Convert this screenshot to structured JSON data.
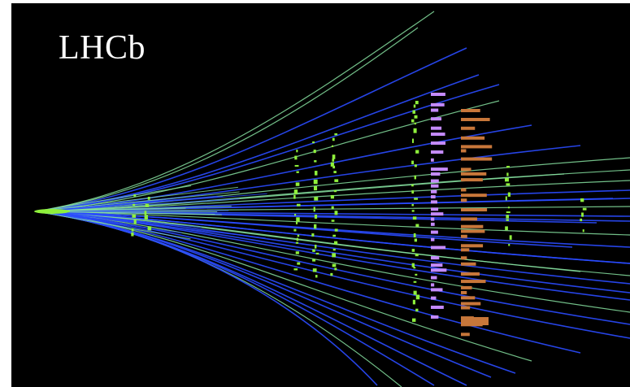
{
  "image": {
    "label": "LHCb",
    "colors": {
      "background": "#000000",
      "track_blue": "#2a4bff",
      "track_green": "#86e0a0",
      "hits": "#8ff03c",
      "ecal": "#c58bff",
      "hcal": "#c8773a",
      "text": "#ffffff"
    }
  }
}
